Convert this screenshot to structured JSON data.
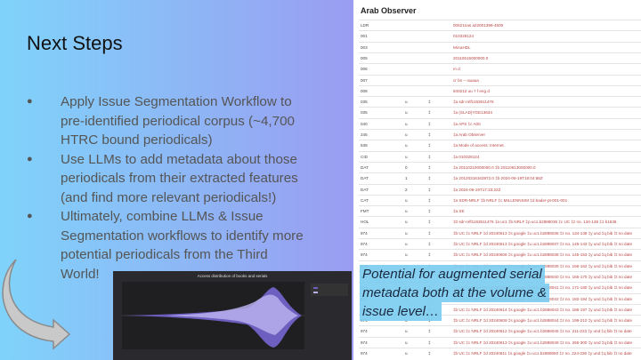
{
  "slide": {
    "title": "Next Steps",
    "bullets": [
      [
        "Apply Issue Segmentation Workflow to",
        "pre-identified periodical corpus (~4,700",
        "HTRC bound periodicals)"
      ],
      [
        "Use LLMs to add metadata about those",
        "periodicals from their extracted features",
        "(and find more relevant periodicals!)"
      ],
      [
        "Ultimately, combine LLMs & Issue",
        "Segmentation workflows to identify more",
        "potential periodicals from the Third",
        "World!"
      ]
    ]
  },
  "record": {
    "title": "Arab Observer",
    "rows": [
      {
        "tag": "LDR",
        "value": "00621nas a22001396-4500"
      },
      {
        "tag": "001",
        "value": "010328124"
      },
      {
        "tag": "003",
        "value": "MiAaHDL"
      },
      {
        "tag": "005",
        "value": "20110615000000.0"
      },
      {
        "tag": "006",
        "value": "m d"
      },
      {
        "tag": "007",
        "value": "cr bn ---auaua"
      },
      {
        "tag": "008",
        "value": "840212 uu ? f eng d"
      },
      {
        "tag": "035",
        "ind1": "u",
        "ind2": "‡",
        "value": "‡a sdr-nrlf1163611476"
      },
      {
        "tag": "035",
        "ind1": "u",
        "ind2": "‡",
        "value": "‡a (SLAD)YGE13634"
      },
      {
        "tag": "040",
        "ind1": "u",
        "ind2": "‡",
        "value": "‡a APS ‡c A00"
      },
      {
        "tag": "245",
        "ind1": "u",
        "ind2": "‡",
        "value": "‡a Arab Observer"
      },
      {
        "tag": "538",
        "ind1": "u",
        "ind2": "‡",
        "value": "‡a Mode of access: Internet."
      },
      {
        "tag": "CID",
        "ind1": "u",
        "ind2": "‡",
        "value": "‡a 010328124"
      },
      {
        "tag": "DAT",
        "ind1": "0",
        "ind2": "‡",
        "value": "‡a 20110210000000.0 ‡b 20110613000000.0"
      },
      {
        "tag": "DAT",
        "ind1": "1",
        "ind2": "‡",
        "value": "‡a 20120316163872.0 ‡b 2024-06-19T18:04:68Z"
      },
      {
        "tag": "DAT",
        "ind1": "2",
        "ind2": "‡",
        "value": "‡a 2024-06-19T17:33:22Z"
      },
      {
        "tag": "CAT",
        "ind1": "u",
        "ind2": "‡",
        "value": "‡a SDR-NRLF ‡b NRLF ‡c MILLENNIUM ‡d bader-pt-001-001"
      },
      {
        "tag": "FMT",
        "ind1": "u",
        "ind2": "‡",
        "value": "‡a SE"
      },
      {
        "tag": "HOL",
        "ind1": "u",
        "ind2": "‡",
        "value": "‡0 sdr-nrlf1163611476 ‡a uc1 ‡b NRLF ‡p uc1.b2888036 ‡c UC ‡z no. 134-138 ‡1 b1636"
      },
      {
        "tag": "974",
        "ind1": "u",
        "ind2": "‡",
        "value": "‡b UC ‡c NRLF ‡d 20240613 ‡s google ‡u uc1.b2888036 ‡z no. 134-138 ‡y und ‡q bib ‡t no date"
      },
      {
        "tag": "974",
        "ind1": "u",
        "ind2": "‡",
        "value": "‡b UC ‡c NRLF ‡d 20240613 ‡s google ‡u uc1.b2888037 ‡z no. 145-143 ‡y und ‡q bib ‡t no date"
      },
      {
        "tag": "974",
        "ind1": "u",
        "ind2": "‡",
        "value": "‡b UC ‡c NRLF ‡d 20240608 ‡s google ‡u uc1.b2888038 ‡z no. 145-153 ‡y und ‡q bib ‡t no date"
      },
      {
        "tag": "974",
        "ind1": "u",
        "ind2": "‡",
        "value": "‡b UC ‡c NRLF ‡d 20230702 ‡s google ‡u uc1.b2888039 ‡z no. 156-162 ‡y und ‡q bib ‡t no date"
      },
      {
        "tag": "974",
        "ind1": "u",
        "ind2": "‡",
        "value": "‡b UC ‡c NRLF ‡d 20240613 ‡s google ‡u uc1.b2888040 ‡z no. 165-170 ‡y und ‡q bib ‡t no date"
      },
      {
        "tag": "974",
        "ind1": "u",
        "ind2": "‡",
        "value": "‡b UC ‡c NRLF ‡d 20230823 ‡s google ‡u uc1.b2888041 ‡z no. 171-180 ‡y und ‡q bib ‡t no date"
      },
      {
        "tag": "974",
        "ind1": "u",
        "ind2": "‡",
        "value": "‡b UC ‡c NRLF ‡d 20230826 ‡s google ‡u uc1.b2888042 ‡z no. 182-194 ‡y und ‡q bib ‡t no date"
      },
      {
        "tag": "974",
        "ind1": "u",
        "ind2": "‡",
        "value": "‡b UC ‡c NRLF ‡d 20240614 ‡s google ‡u uc1.b2888043 ‡z no. 186-197 ‡y und ‡q bib ‡t no date"
      },
      {
        "tag": "974",
        "ind1": "u",
        "ind2": "‡",
        "value": "‡b UC ‡c NRLF ‡d 20240609 ‡s google ‡u uc1.b2888044 ‡z no. 199-210 ‡y und ‡q bib ‡t no date"
      },
      {
        "tag": "974",
        "ind1": "u",
        "ind2": "‡",
        "value": "‡b UC ‡c NRLF ‡d 20240612 ‡s google ‡u uc1.b2888045 ‡z no. 211-223 ‡y und ‡q bib ‡t no date"
      },
      {
        "tag": "974",
        "ind1": "u",
        "ind2": "‡",
        "value": "‡b UC ‡c NRLF ‡d 20240613 ‡s google ‡u uc1.b2888049 ‡z no. 265-300 ‡y und ‡q bib ‡t no date"
      },
      {
        "tag": "974",
        "ind1": "u",
        "ind2": "‡",
        "value": "‡b UC ‡c NRLF ‡d 20240611 ‡s google ‡u uc1.b2888050 ‡z no. 224-236 ‡y und ‡q bib ‡t no date"
      }
    ]
  },
  "chart_image": {
    "title": "Access distribution of books and serials"
  },
  "callout": [
    "Potential for augmented serial",
    "metadata both at the volume &",
    "issue level…"
  ]
}
